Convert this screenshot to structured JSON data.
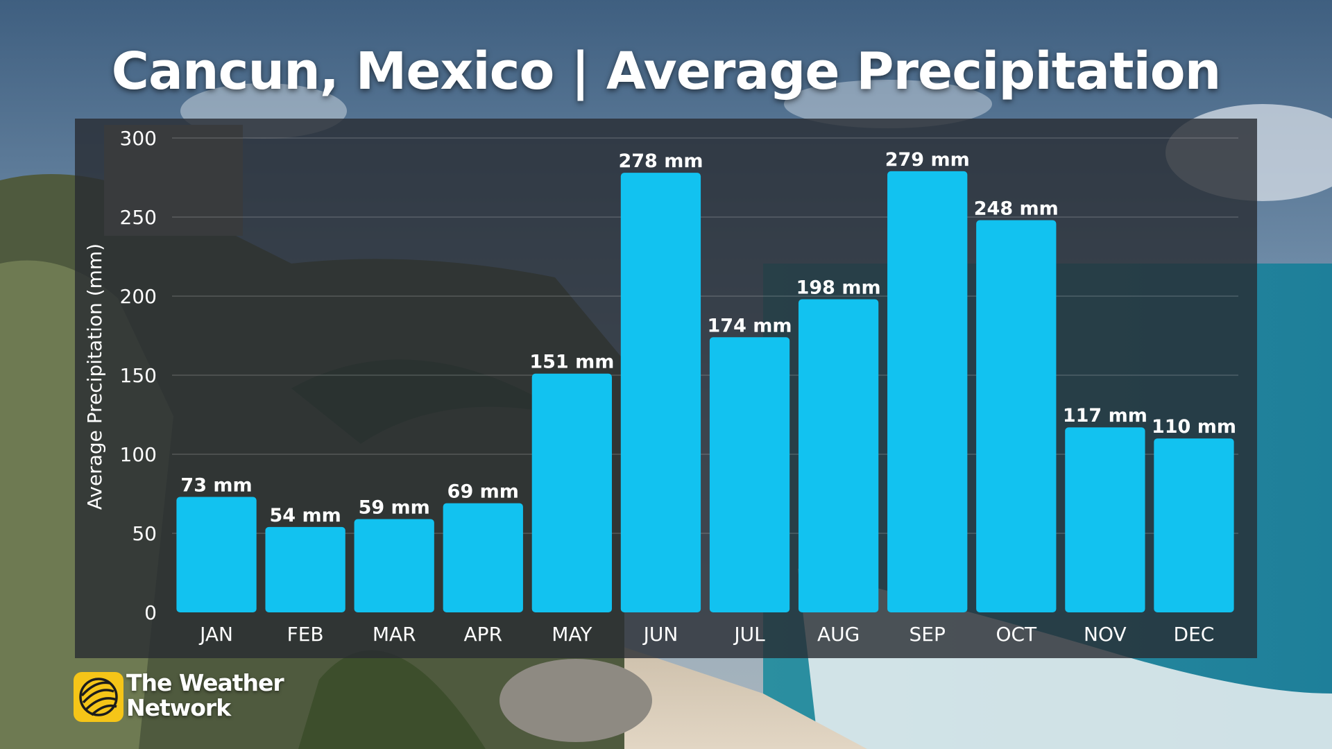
{
  "title": "Cancun, Mexico | Average Precipitation",
  "logo": {
    "line1": "The Weather",
    "line2": "Network"
  },
  "colors": {
    "bar": "#12c2f0",
    "text": "#ffffff",
    "panel": "#282c32",
    "logo_mark": "#f5c518"
  },
  "icons": {
    "logo": "weather-network-logo-icon"
  },
  "chart_data": {
    "type": "bar",
    "categories": [
      "JAN",
      "FEB",
      "MAR",
      "APR",
      "MAY",
      "JUN",
      "JUL",
      "AUG",
      "SEP",
      "OCT",
      "NOV",
      "DEC"
    ],
    "values": [
      73,
      54,
      59,
      69,
      151,
      278,
      174,
      198,
      279,
      248,
      117,
      110
    ],
    "data_labels": [
      "73 mm",
      "54 mm",
      "59 mm",
      "69 mm",
      "151 mm",
      "278 mm",
      "174 mm",
      "198 mm",
      "279 mm",
      "248 mm",
      "117 mm",
      "110 mm"
    ],
    "title": "Cancun, Mexico | Average Precipitation",
    "xlabel": "",
    "ylabel": "Average Precipitation (mm)",
    "ylim": [
      0,
      300
    ],
    "yticks": [
      0,
      50,
      100,
      150,
      200,
      250,
      300
    ],
    "grid": true,
    "legend": "none"
  }
}
